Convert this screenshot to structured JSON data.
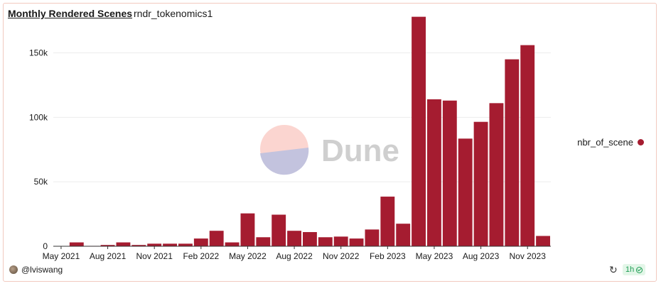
{
  "header": {
    "title": "Monthly Rendered Scenes",
    "subtitle": "rndr_tokenomics1"
  },
  "watermark": {
    "text": "Dune"
  },
  "legend": {
    "label": "nbr_of_scene",
    "color": "#a51c30"
  },
  "footer": {
    "author": "@lviswang",
    "refresh_interval": "1h",
    "refresh_icon": "refresh-icon",
    "status_icon": "check-circle-icon"
  },
  "chart_data": {
    "type": "bar",
    "categories": [
      "May 2021",
      "Jun 2021",
      "Jul 2021",
      "Aug 2021",
      "Sep 2021",
      "Oct 2021",
      "Nov 2021",
      "Dec 2021",
      "Jan 2022",
      "Feb 2022",
      "Mar 2022",
      "Apr 2022",
      "May 2022",
      "Jun 2022",
      "Jul 2022",
      "Aug 2022",
      "Sep 2022",
      "Oct 2022",
      "Nov 2022",
      "Dec 2022",
      "Jan 2023",
      "Feb 2023",
      "Mar 2023",
      "Apr 2023",
      "May 2023",
      "Jun 2023",
      "Jul 2023",
      "Aug 2023",
      "Sep 2023",
      "Oct 2023",
      "Nov 2023",
      "Dec 2023"
    ],
    "series": [
      {
        "name": "nbr_of_scene",
        "color": "#a51c30",
        "values": [
          0,
          3000,
          300,
          1000,
          3000,
          1000,
          2000,
          2000,
          2000,
          6000,
          12000,
          3000,
          25500,
          7000,
          24500,
          12000,
          11000,
          7000,
          7500,
          6000,
          13000,
          38500,
          17500,
          178000,
          114000,
          113000,
          83500,
          96500,
          111000,
          145000,
          156000,
          8000
        ]
      }
    ],
    "xtick_labels": [
      "May 2021",
      "Aug 2021",
      "Nov 2021",
      "Feb 2022",
      "May 2022",
      "Aug 2022",
      "Nov 2022",
      "Feb 2023",
      "May 2023",
      "Aug 2023",
      "Nov 2023"
    ],
    "ytick_labels": [
      "0",
      "50k",
      "100k",
      "150k"
    ],
    "yticks": [
      0,
      50000,
      100000,
      150000
    ],
    "ylim": [
      0,
      180000
    ],
    "grid": true,
    "legend_position": "right"
  }
}
